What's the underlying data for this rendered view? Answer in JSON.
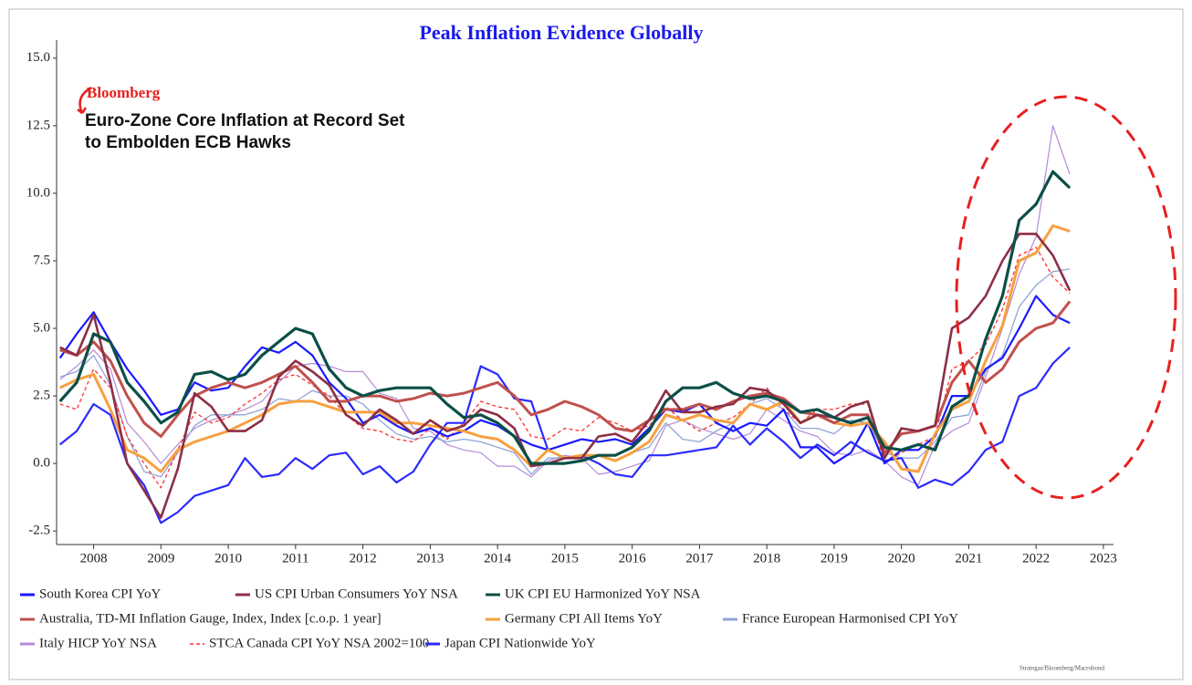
{
  "chart_data": {
    "type": "line",
    "title": "Peak Inflation Evidence Globally",
    "annotations": [
      "Bloomberg",
      "Euro-Zone Core Inflation at Record Set",
      "to Embolden ECB Hawks"
    ],
    "source": "Strategas/Bloomberg/Macrobond",
    "x": [
      2008,
      2008.25,
      2008.5,
      2008.75,
      2009,
      2009.25,
      2009.5,
      2009.75,
      2010,
      2010.25,
      2010.5,
      2010.75,
      2011,
      2011.25,
      2011.5,
      2011.75,
      2012,
      2012.25,
      2012.5,
      2012.75,
      2013,
      2013.25,
      2013.5,
      2013.75,
      2014,
      2014.25,
      2014.5,
      2014.75,
      2015,
      2015.25,
      2015.5,
      2015.75,
      2016,
      2016.25,
      2016.5,
      2016.75,
      2017,
      2017.25,
      2017.5,
      2017.75,
      2018,
      2018.25,
      2018.5,
      2018.75,
      2019,
      2019.25,
      2019.5,
      2019.75,
      2020,
      2020.25,
      2020.5,
      2020.75,
      2021,
      2021.25,
      2021.5,
      2021.75,
      2022,
      2022.25,
      2022.5,
      2022.75,
      2023
    ],
    "xlim": [
      2007.95,
      2023.65
    ],
    "xticks": [
      {
        "value": 2008.5,
        "label": "2008"
      },
      {
        "value": 2009.5,
        "label": "2009"
      },
      {
        "value": 2010.5,
        "label": "2010"
      },
      {
        "value": 2011.5,
        "label": "2011"
      },
      {
        "value": 2012.5,
        "label": "2012"
      },
      {
        "value": 2013.5,
        "label": "2013"
      },
      {
        "value": 2014.5,
        "label": "2014"
      },
      {
        "value": 2015.5,
        "label": "2015"
      },
      {
        "value": 2016.5,
        "label": "2016"
      },
      {
        "value": 2017.5,
        "label": "2017"
      },
      {
        "value": 2018.5,
        "label": "2018"
      },
      {
        "value": 2019.5,
        "label": "2019"
      },
      {
        "value": 2020.5,
        "label": "2020"
      },
      {
        "value": 2021.5,
        "label": "2021"
      },
      {
        "value": 2022.5,
        "label": "2022"
      },
      {
        "value": 2023.5,
        "label": "2023"
      }
    ],
    "ylim": [
      -3,
      15.5
    ],
    "yticks": [
      {
        "value": 15,
        "label": "15.0"
      },
      12.5,
      {
        "value": 10,
        "label": "10.0"
      },
      7.5,
      {
        "value": 5,
        "label": "5.0"
      },
      2.5,
      {
        "value": 0,
        "label": "0.0"
      },
      -2.5
    ],
    "grid": false,
    "series": [
      {
        "name": "South Korea CPI YoY",
        "color": "#1a1aff",
        "values": [
          3.9,
          4.8,
          5.6,
          4.5,
          3.5,
          2.7,
          1.8,
          2.0,
          3.0,
          2.7,
          2.8,
          3.6,
          4.3,
          4.1,
          4.5,
          4.0,
          3.0,
          2.4,
          1.5,
          1.8,
          1.4,
          1.1,
          1.3,
          1.0,
          1.2,
          1.6,
          1.4,
          1.0,
          0.7,
          0.5,
          0.7,
          0.9,
          0.8,
          0.9,
          0.7,
          1.3,
          2.0,
          1.9,
          2.2,
          1.5,
          1.2,
          1.5,
          1.4,
          2.0,
          0.6,
          0.6,
          0.0,
          0.4,
          1.5,
          0.0,
          0.5,
          0.5,
          1.0,
          2.5,
          2.5,
          3.5,
          3.9,
          5.0,
          6.2,
          5.5,
          5.2
        ]
      },
      {
        "name": "US CPI Urban Consumers YoY NSA",
        "color": "#8c2f45",
        "values": [
          4.3,
          4.0,
          5.5,
          3.0,
          0.0,
          -1.0,
          -2.0,
          -0.2,
          2.6,
          2.1,
          1.2,
          1.2,
          1.6,
          3.2,
          3.8,
          3.4,
          2.9,
          1.8,
          1.4,
          2.0,
          1.6,
          1.1,
          1.6,
          1.2,
          1.4,
          2.0,
          1.8,
          1.3,
          -0.1,
          0.0,
          0.2,
          0.2,
          1.0,
          1.1,
          0.8,
          1.6,
          2.7,
          1.9,
          1.9,
          2.1,
          2.2,
          2.8,
          2.7,
          2.2,
          1.5,
          1.8,
          1.7,
          2.1,
          2.3,
          0.2,
          1.3,
          1.2,
          1.4,
          5.0,
          5.4,
          6.2,
          7.5,
          8.5,
          8.5,
          7.7,
          6.4
        ]
      },
      {
        "name": "UK CPI EU Harmonized YoY NSA",
        "color": "#0b4f47",
        "values": [
          2.3,
          3.0,
          4.8,
          4.5,
          3.0,
          2.3,
          1.5,
          1.9,
          3.3,
          3.4,
          3.1,
          3.3,
          4.0,
          4.5,
          5.0,
          4.8,
          3.5,
          2.8,
          2.5,
          2.7,
          2.8,
          2.8,
          2.8,
          2.2,
          1.7,
          1.8,
          1.5,
          1.0,
          0.0,
          0.0,
          0.0,
          0.1,
          0.3,
          0.3,
          0.6,
          1.2,
          2.3,
          2.8,
          2.8,
          3.0,
          2.6,
          2.4,
          2.5,
          2.3,
          1.9,
          2.0,
          1.7,
          1.5,
          1.7,
          0.6,
          0.5,
          0.7,
          0.5,
          2.1,
          2.5,
          4.6,
          6.2,
          9.0,
          9.6,
          10.8,
          10.2
        ]
      },
      {
        "name": "Australia, TD-MI Inflation Gauge, Index, Index [c.o.p. 1 year]",
        "color": "#c0504d",
        "values": [
          4.2,
          4.0,
          4.5,
          3.8,
          2.5,
          1.5,
          1.0,
          1.8,
          2.5,
          2.8,
          3.0,
          2.8,
          3.0,
          3.3,
          3.6,
          3.0,
          2.3,
          2.3,
          2.5,
          2.5,
          2.3,
          2.4,
          2.6,
          2.5,
          2.6,
          2.8,
          3.0,
          2.5,
          1.8,
          2.0,
          2.3,
          2.1,
          1.8,
          1.3,
          1.2,
          1.6,
          2.0,
          2.0,
          2.2,
          2.0,
          2.3,
          2.5,
          2.6,
          2.4,
          1.9,
          1.8,
          1.5,
          1.8,
          1.8,
          0.4,
          1.1,
          1.2,
          1.4,
          3.0,
          3.8,
          3.0,
          3.5,
          4.5,
          5.0,
          5.2,
          6.0
        ]
      },
      {
        "name": "Germany CPI All Items YoY",
        "color": "#f7a040",
        "values": [
          2.8,
          3.1,
          3.3,
          2.0,
          0.5,
          0.2,
          -0.3,
          0.5,
          0.8,
          1.0,
          1.2,
          1.5,
          1.8,
          2.2,
          2.3,
          2.3,
          2.1,
          1.9,
          1.9,
          1.9,
          1.5,
          1.5,
          1.4,
          1.3,
          1.2,
          1.0,
          0.9,
          0.5,
          -0.1,
          0.5,
          0.2,
          0.3,
          0.3,
          0.1,
          0.4,
          0.8,
          1.8,
          1.6,
          1.8,
          1.6,
          1.5,
          2.2,
          2.0,
          2.3,
          1.5,
          1.8,
          1.5,
          1.4,
          1.5,
          0.8,
          -0.2,
          -0.3,
          1.1,
          2.0,
          2.3,
          3.8,
          5.1,
          7.5,
          7.8,
          8.8,
          8.6
        ]
      },
      {
        "name": "France European Harmonised CPI YoY",
        "color": "#8fa5d8",
        "values": [
          3.2,
          3.4,
          4.0,
          2.9,
          1.0,
          -0.3,
          -0.5,
          0.4,
          1.4,
          1.8,
          1.8,
          1.8,
          2.0,
          2.4,
          2.3,
          2.7,
          2.5,
          2.5,
          2.2,
          1.6,
          1.1,
          0.9,
          1.0,
          0.8,
          0.9,
          0.8,
          0.6,
          0.4,
          -0.4,
          0.2,
          0.2,
          0.2,
          0.3,
          0.1,
          0.4,
          0.6,
          1.5,
          0.9,
          0.8,
          1.2,
          1.5,
          2.2,
          2.4,
          2.0,
          1.3,
          1.3,
          1.1,
          1.6,
          1.5,
          0.4,
          0.2,
          0.2,
          0.8,
          1.7,
          1.8,
          3.4,
          4.0,
          5.8,
          6.6,
          7.1,
          7.2
        ]
      },
      {
        "name": "Italy HICP YoY NSA",
        "color": "#b58bd8",
        "values": [
          3.1,
          3.6,
          4.2,
          3.5,
          1.5,
          0.8,
          0.0,
          0.7,
          1.3,
          1.6,
          1.8,
          2.0,
          2.3,
          3.0,
          3.6,
          3.7,
          3.6,
          3.4,
          3.4,
          2.6,
          2.4,
          1.3,
          1.2,
          0.7,
          0.5,
          0.4,
          -0.1,
          -0.1,
          -0.5,
          0.1,
          0.3,
          0.2,
          -0.4,
          -0.3,
          -0.1,
          0.1,
          1.4,
          1.6,
          1.3,
          1.1,
          0.9,
          1.1,
          2.0,
          1.6,
          1.2,
          1.0,
          0.4,
          0.3,
          0.5,
          0.1,
          -0.5,
          -0.8,
          0.7,
          1.2,
          1.5,
          3.2,
          5.0,
          7.0,
          8.4,
          12.5,
          10.7
        ]
      },
      {
        "name": "STCA Canada CPI YoY NSA 2002=100",
        "color": "#ff3030",
        "linestyle": "dashed",
        "values": [
          2.2,
          2.0,
          3.5,
          2.8,
          1.0,
          0.0,
          -0.9,
          0.5,
          1.9,
          1.5,
          1.7,
          2.2,
          2.6,
          3.1,
          3.3,
          2.9,
          2.5,
          1.8,
          1.3,
          1.2,
          0.9,
          0.8,
          1.3,
          0.9,
          1.5,
          2.3,
          2.1,
          2.0,
          1.0,
          0.9,
          1.3,
          1.2,
          1.7,
          1.5,
          1.2,
          1.4,
          2.1,
          1.6,
          1.2,
          1.5,
          1.7,
          2.2,
          2.8,
          2.0,
          1.5,
          2.0,
          2.0,
          2.2,
          2.2,
          0.0,
          0.4,
          0.7,
          1.0,
          3.5,
          3.8,
          4.4,
          5.7,
          7.7,
          8.0,
          6.9,
          6.3
        ]
      },
      {
        "name": "Japan CPI Nationwide YoY",
        "color": "#2b2bff",
        "values": [
          0.7,
          1.2,
          2.2,
          1.8,
          0.0,
          -0.8,
          -2.2,
          -1.8,
          -1.2,
          -1.0,
          -0.8,
          0.2,
          -0.5,
          -0.4,
          0.2,
          -0.2,
          0.3,
          0.4,
          -0.4,
          -0.1,
          -0.7,
          -0.3,
          0.7,
          1.5,
          1.5,
          3.6,
          3.3,
          2.4,
          2.3,
          0.5,
          0.2,
          0.3,
          0.0,
          -0.4,
          -0.5,
          0.3,
          0.3,
          0.4,
          0.5,
          0.6,
          1.4,
          0.7,
          1.3,
          0.8,
          0.2,
          0.7,
          0.3,
          0.8,
          0.4,
          0.1,
          0.2,
          -0.9,
          -0.6,
          -0.8,
          -0.3,
          0.5,
          0.8,
          2.5,
          2.8,
          3.7,
          4.3
        ]
      }
    ]
  }
}
